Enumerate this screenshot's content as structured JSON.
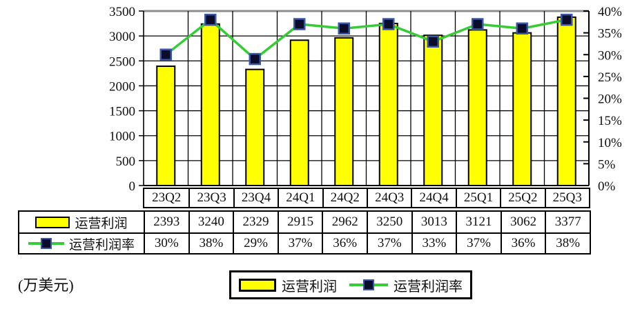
{
  "unit_label": "(万美元)",
  "colors": {
    "bar_fill": "#ffff00",
    "bar_stroke": "#000000",
    "line": "#35cc35",
    "marker_fill": "#0b0b2a",
    "marker_stroke": "#3a56a8",
    "grid": "#000000",
    "plot_top_border": "#8c8c8c",
    "text": "#111111"
  },
  "chart_data": {
    "type": "combo-bar-line",
    "title": "",
    "xlabel": "",
    "ylabel_left_unit": "(万美元)",
    "grid": true,
    "legend_position": "bottom",
    "categories": [
      "23Q2",
      "23Q3",
      "23Q4",
      "24Q1",
      "24Q2",
      "24Q3",
      "24Q4",
      "25Q1",
      "25Q2",
      "25Q3"
    ],
    "series": [
      {
        "name": "运营利润",
        "type": "bar",
        "axis": "left",
        "values": [
          2393,
          3240,
          2329,
          2915,
          2962,
          3250,
          3013,
          3121,
          3062,
          3377
        ]
      },
      {
        "name": "运营利润率",
        "type": "line",
        "axis": "right",
        "values": [
          30,
          38,
          29,
          37,
          36,
          37,
          33,
          37,
          36,
          38
        ]
      }
    ],
    "left_axis": {
      "min": 0,
      "max": 3500,
      "step": 500,
      "ticks": [
        "3500",
        "3000",
        "2500",
        "2000",
        "1500",
        "1000",
        "500",
        "0"
      ]
    },
    "right_axis": {
      "min": 0,
      "max": 40,
      "step": 5,
      "ticks": [
        "40%",
        "35%",
        "30%",
        "25%",
        "20%",
        "15%",
        "10%",
        "5%",
        "0%"
      ]
    }
  },
  "table": {
    "categories": [
      "23Q2",
      "23Q3",
      "23Q4",
      "24Q1",
      "24Q2",
      "24Q3",
      "24Q4",
      "25Q1",
      "25Q2",
      "25Q3"
    ],
    "rows": [
      {
        "label": "运营利润",
        "values": [
          "2393",
          "3240",
          "2329",
          "2915",
          "2962",
          "3250",
          "3013",
          "3121",
          "3062",
          "3377"
        ]
      },
      {
        "label": "运营利润率",
        "values": [
          "30%",
          "38%",
          "29%",
          "37%",
          "36%",
          "37%",
          "33%",
          "37%",
          "36%",
          "38%"
        ]
      }
    ]
  },
  "legend": {
    "bar_label": "运营利润",
    "line_label": "运营利润率"
  }
}
